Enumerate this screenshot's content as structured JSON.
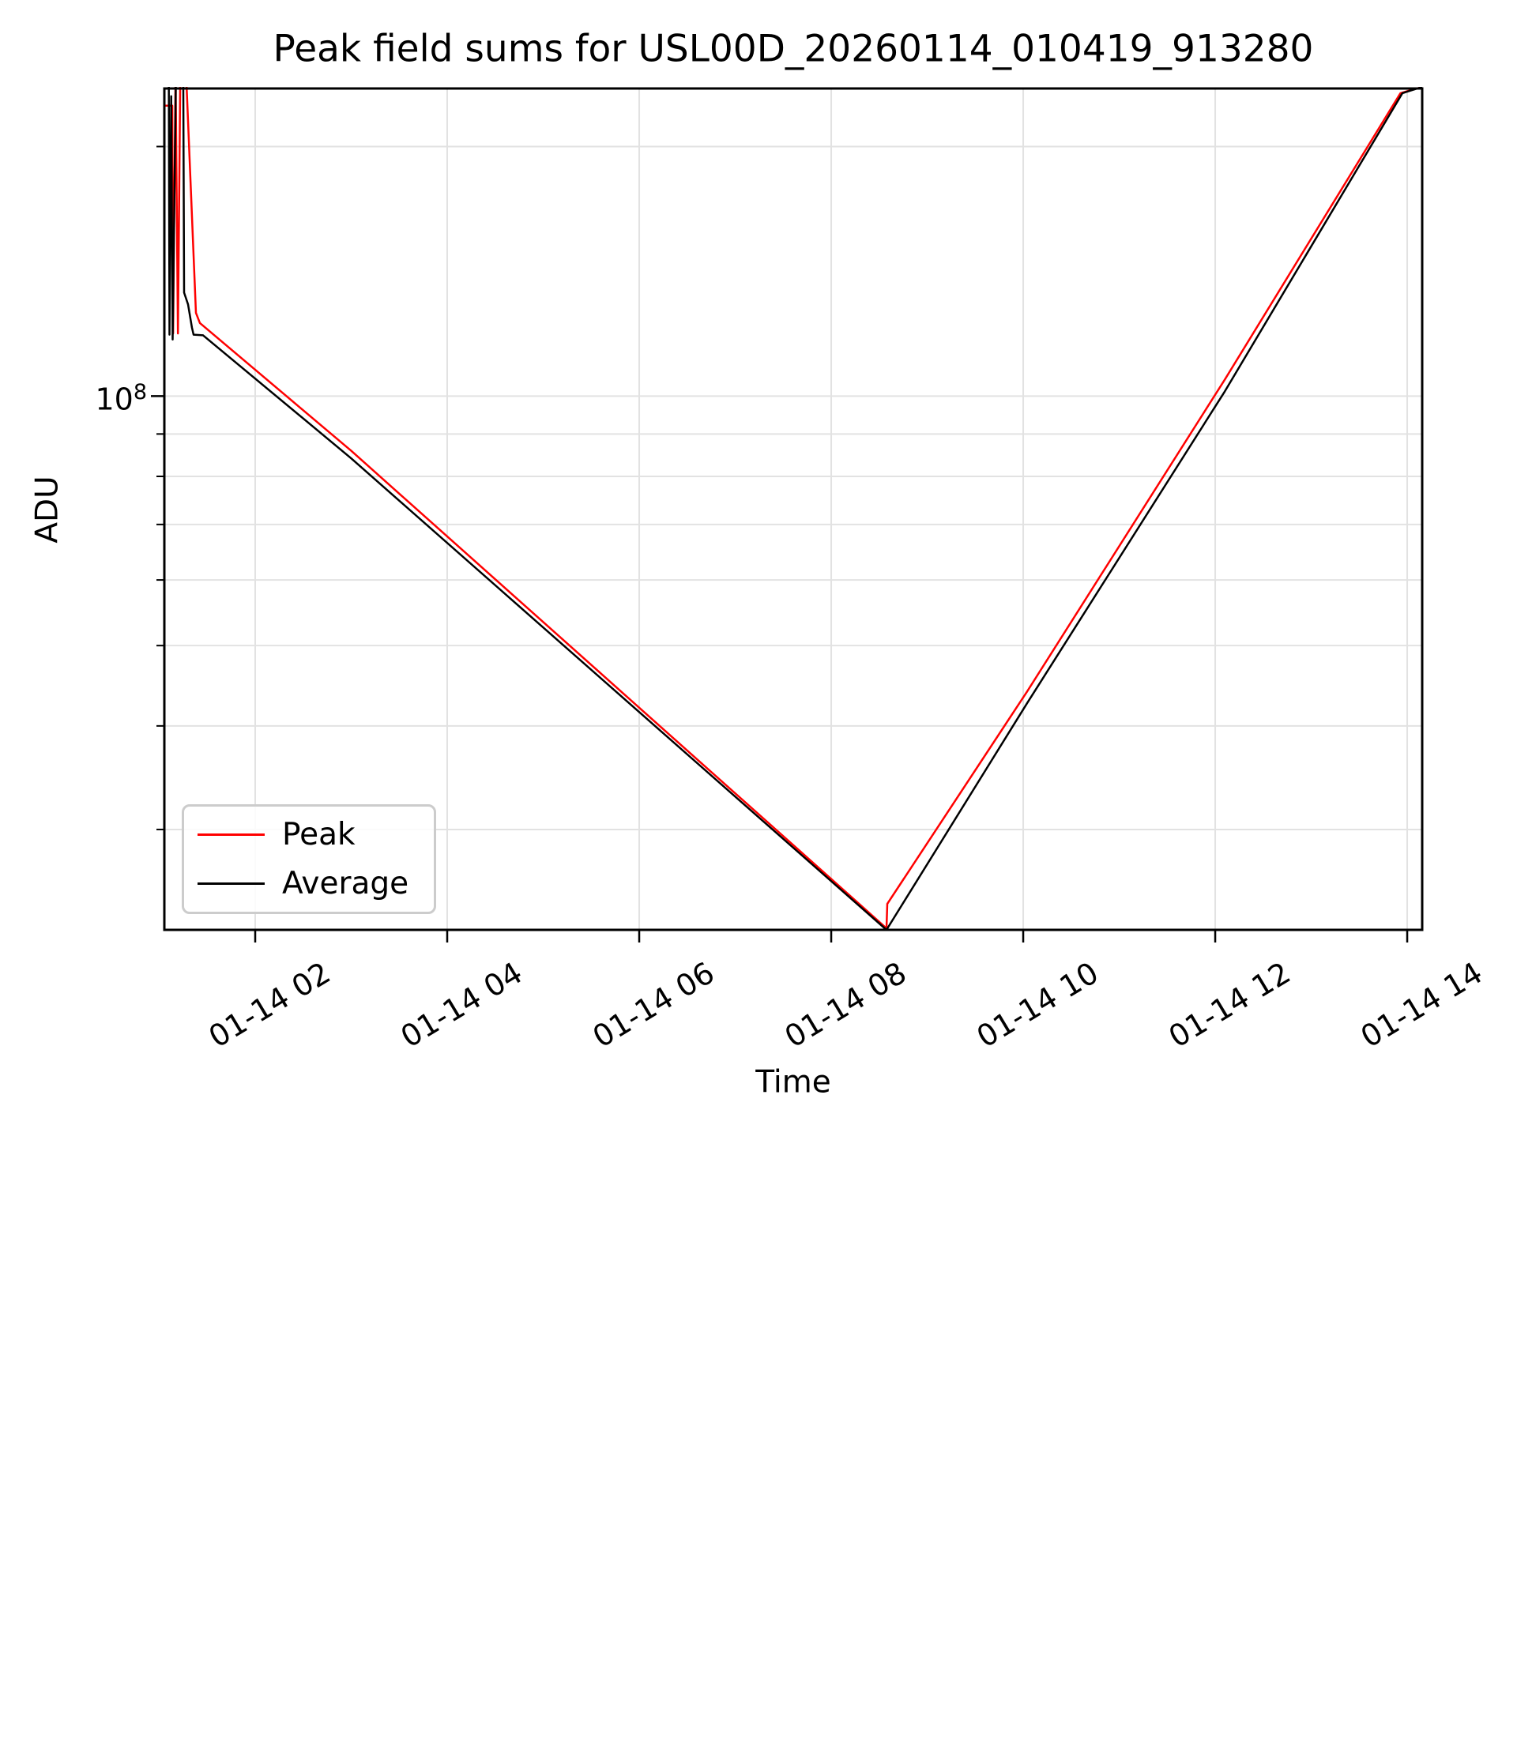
{
  "chart_data": {
    "type": "line",
    "title": "Peak field sums for USL00D_20260114_010419_913280",
    "xlabel": "Time",
    "ylabel": "ADU",
    "x_axis": {
      "unit_note": "hours of day on 01-14",
      "min": 1.0535,
      "max": 14.156,
      "ticks": [
        {
          "hour": 2,
          "label": "01-14 02"
        },
        {
          "hour": 4,
          "label": "01-14 04"
        },
        {
          "hour": 6,
          "label": "01-14 06"
        },
        {
          "hour": 8,
          "label": "01-14 08"
        },
        {
          "hour": 10,
          "label": "01-14 10"
        },
        {
          "hour": 12,
          "label": "01-14 12"
        },
        {
          "hour": 14,
          "label": "01-14 14"
        }
      ]
    },
    "y_axis": {
      "scale": "log",
      "min": 22700000.0,
      "max": 235000000.0,
      "major_tick": {
        "value": 100000000.0,
        "label_base": "10",
        "label_exponent": "8"
      },
      "minor_gridline_values": [
        200000000.0,
        90000000.0,
        80000000.0,
        70000000.0,
        60000000.0,
        50000000.0,
        40000000.0,
        30000000.0
      ]
    },
    "grid": {
      "show": true,
      "color": "#e2e2e2"
    },
    "series": [
      {
        "name": "Peak",
        "color": "#ff0000",
        "points_hour_adu": [
          [
            1.054,
            224000000.0
          ],
          [
            1.136,
            224000000.0
          ],
          [
            1.145,
            119000000.0
          ],
          [
            1.17,
            245000000.0
          ],
          [
            1.195,
            119000000.0
          ],
          [
            1.22,
            245000000.0
          ],
          [
            1.28,
            245000000.0
          ],
          [
            1.383,
            126000000.0
          ],
          [
            1.424,
            122500000.0
          ],
          [
            3.0,
            85900000.0
          ],
          [
            8.576,
            22800000.0
          ],
          [
            8.584,
            24400000.0
          ],
          [
            10.04,
            44000000.0
          ],
          [
            12.1,
            104700000.0
          ],
          [
            13.93,
            232000000.0
          ],
          [
            14.156,
            236000000.0
          ]
        ]
      },
      {
        "name": "Average",
        "color": "#000000",
        "points_hour_adu": [
          [
            1.1,
            250000000.0
          ],
          [
            1.107,
            118600000.0
          ],
          [
            1.125,
            230000000.0
          ],
          [
            1.14,
            117000000.0
          ],
          [
            1.175,
            250000000.0
          ],
          [
            1.25,
            250000000.0
          ],
          [
            1.259,
            133300000.0
          ],
          [
            1.3,
            129000000.0
          ],
          [
            1.341,
            121000000.0
          ],
          [
            1.358,
            118600000.0
          ],
          [
            1.457,
            118400000.0
          ],
          [
            3.0,
            84100000.0
          ],
          [
            8.576,
            22700000.0
          ],
          [
            10.04,
            42600000.0
          ],
          [
            12.1,
            101300000.0
          ],
          [
            13.95,
            232000000.0
          ],
          [
            14.156,
            236000000.0
          ]
        ]
      }
    ],
    "legend": {
      "position": "lower left",
      "entries": [
        "Peak",
        "Average"
      ]
    },
    "colors": {
      "axes": "#000000",
      "text": "#000000",
      "grid": "#e2e2e2",
      "legend_border": "#cccccc",
      "background": "#ffffff"
    }
  }
}
